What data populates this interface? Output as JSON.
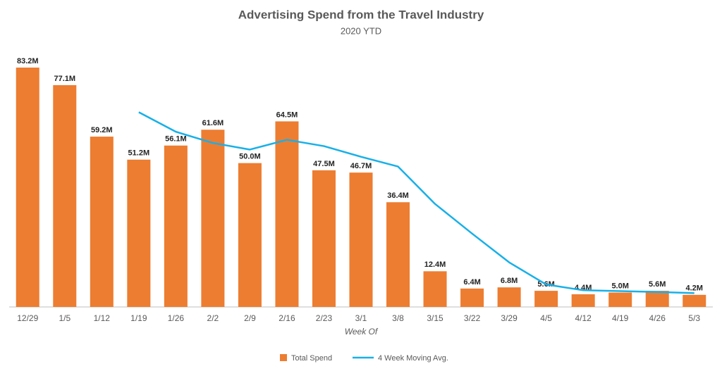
{
  "chart_data": {
    "type": "bar",
    "title": "Advertising Spend from the Travel Industry",
    "subtitle": "2020 YTD",
    "x_label": "Week Of",
    "categories": [
      "12/29",
      "1/5",
      "1/12",
      "1/19",
      "1/26",
      "2/2",
      "2/9",
      "2/16",
      "2/23",
      "3/1",
      "3/8",
      "3/15",
      "3/22",
      "3/29",
      "4/5",
      "4/12",
      "4/19",
      "4/26",
      "5/3"
    ],
    "legend": "bottom",
    "series": [
      {
        "name": "Total Spend",
        "type": "bar",
        "color": "#ed7d31",
        "values": [
          83.2,
          77.1,
          59.2,
          51.2,
          56.1,
          61.6,
          50.0,
          64.5,
          47.5,
          46.7,
          36.4,
          12.4,
          6.4,
          6.8,
          5.6,
          4.4,
          5.0,
          5.6,
          4.2
        ],
        "value_labels": [
          "83.2M",
          "77.1M",
          "59.2M",
          "51.2M",
          "56.1M",
          "61.6M",
          "50.0M",
          "64.5M",
          "47.5M",
          "46.7M",
          "36.4M",
          "12.4M",
          "6.4M",
          "6.8M",
          "5.6M",
          "4.4M",
          "5.0M",
          "5.6M",
          "4.2M"
        ]
      },
      {
        "name": "4 Week Moving Avg.",
        "type": "line",
        "color": "#18b0e8",
        "values": [
          null,
          null,
          null,
          67.7,
          60.9,
          57.0,
          54.7,
          58.1,
          55.9,
          52.2,
          48.8,
          35.8,
          25.5,
          15.5,
          7.8,
          5.8,
          5.5,
          5.2,
          4.8
        ]
      }
    ]
  }
}
